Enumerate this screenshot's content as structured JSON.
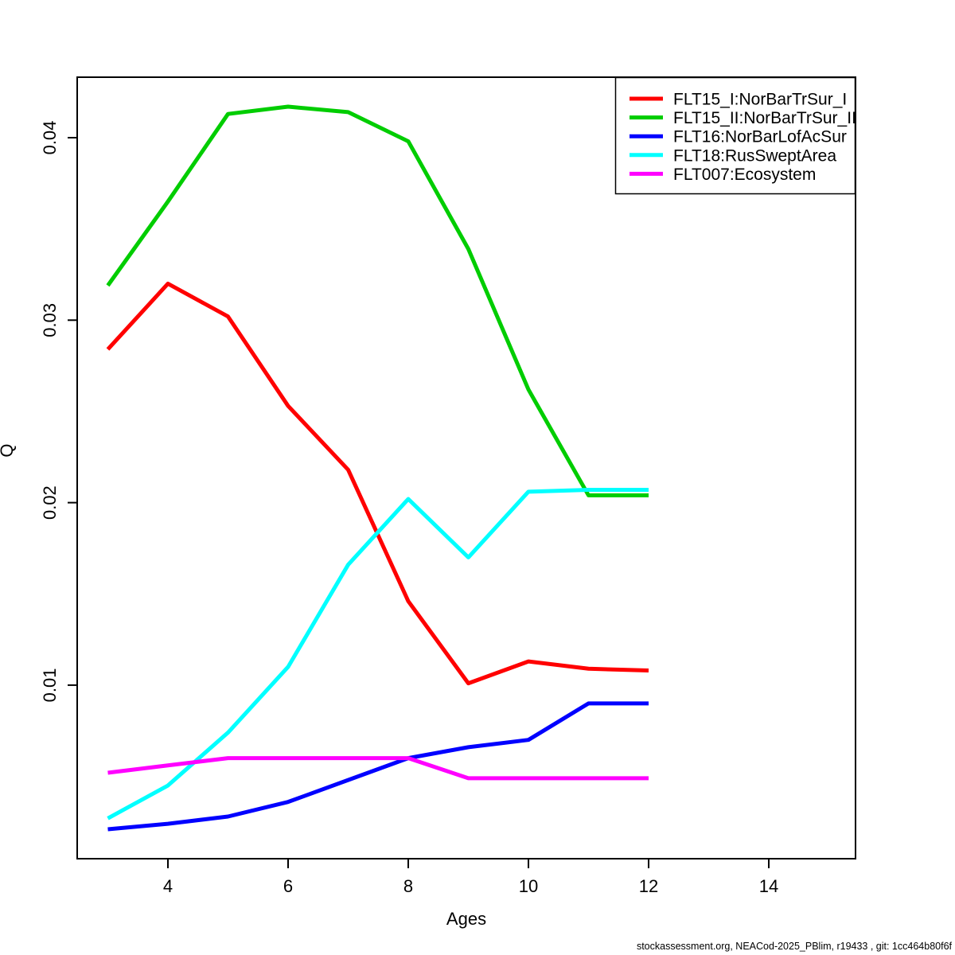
{
  "figure": {
    "footer": "stockassessment.org, NEACod-2025_PBlim, r19433 , git: 1cc464b80f6f"
  },
  "chart_data": {
    "type": "line",
    "title": "",
    "xlabel": "Ages",
    "ylabel": "Q",
    "x": [
      3,
      4,
      5,
      6,
      7,
      8,
      9,
      10,
      11,
      12
    ],
    "xticks": [
      "4",
      "6",
      "8",
      "10",
      "12",
      "14"
    ],
    "yticks": [
      "0.01",
      "0.02",
      "0.03",
      "0.04"
    ],
    "xlim": [
      2.49,
      15.44
    ],
    "ylim": [
      0.0005,
      0.0433
    ],
    "grid": false,
    "legend_position": "top-right",
    "series": [
      {
        "name": "FLT15_I:NorBarTrSur_I",
        "color": "#FF0000",
        "values": [
          0.0284,
          0.032,
          0.0302,
          0.0253,
          0.0218,
          0.0146,
          0.0101,
          0.0113,
          0.0109,
          0.0108
        ]
      },
      {
        "name": "FLT15_II:NorBarTrSur_II",
        "color": "#00CD00",
        "values": [
          0.0319,
          0.0365,
          0.0413,
          0.0417,
          0.0414,
          0.0398,
          0.0339,
          0.0262,
          0.0204,
          0.0204
        ]
      },
      {
        "name": "FLT16:NorBarLofAcSur",
        "color": "#0000FF",
        "values": [
          0.0021,
          0.0024,
          0.0028,
          0.0036,
          0.0048,
          0.006,
          0.0066,
          0.007,
          0.009,
          0.009
        ]
      },
      {
        "name": "FLT18:RusSweptArea",
        "color": "#00FFFF",
        "values": [
          0.0027,
          0.0045,
          0.0074,
          0.011,
          0.0166,
          0.0202,
          0.017,
          0.0206,
          0.0207,
          0.0207
        ]
      },
      {
        "name": "FLT007:Ecosystem",
        "color": "#FF00FF",
        "values": [
          0.0052,
          0.0056,
          0.006,
          0.006,
          0.006,
          0.006,
          0.0049,
          0.0049,
          0.0049,
          0.0049
        ]
      }
    ]
  }
}
